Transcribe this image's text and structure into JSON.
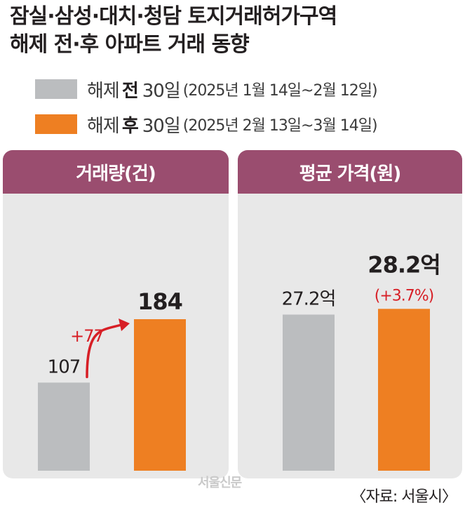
{
  "title": {
    "line1": "잠실·삼성·대치·청담 토지거래허가구역",
    "line2": "해제 전·후 아파트 거래 동향"
  },
  "legend": [
    {
      "prefix": "해제",
      "bold": "전",
      "days": "30일",
      "range": "(2025년 1월 14일~2월 12일)",
      "color": "#bbbdbf"
    },
    {
      "prefix": "해제",
      "bold": "후",
      "days": "30일",
      "range": "(2025년 2월 13일~3월 14일)",
      "color": "#ee7f22"
    }
  ],
  "chart_data": [
    {
      "type": "bar",
      "title": "거래량(건)",
      "categories": [
        "해제 전 30일",
        "해제 후 30일"
      ],
      "values": [
        107,
        184
      ],
      "labels": [
        "107",
        "184"
      ],
      "colors": [
        "#bbbdbf",
        "#ee7f22"
      ],
      "annotation": "+77",
      "ylim": [
        0,
        230
      ]
    },
    {
      "type": "bar",
      "title": "평균 가격(원)",
      "categories": [
        "해제 전 30일",
        "해제 후 30일"
      ],
      "values": [
        27.2,
        28.2
      ],
      "labels": [
        "27.2억",
        "28.2억"
      ],
      "change_label": "(+3.7%)",
      "colors": [
        "#bbbdbf",
        "#ee7f22"
      ],
      "ylim": [
        0,
        33
      ]
    }
  ],
  "watermark": "서울신문",
  "source": "〈자료: 서울시〉",
  "colors": {
    "header": "#9a4d6f",
    "panel_bg": "#e8e8e8",
    "arrow": "#d71f26"
  }
}
